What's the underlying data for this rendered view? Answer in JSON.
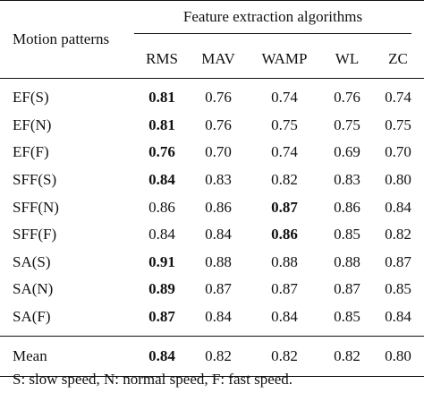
{
  "table": {
    "row_header": "Motion patterns",
    "group_header": "Feature extraction algorithms",
    "columns": [
      "RMS",
      "MAV",
      "WAMP",
      "WL",
      "ZC"
    ],
    "rows": [
      {
        "label": "EF(S)",
        "values": [
          "0.81",
          "0.76",
          "0.74",
          "0.76",
          "0.74"
        ],
        "bold": [
          0
        ]
      },
      {
        "label": "EF(N)",
        "values": [
          "0.81",
          "0.76",
          "0.75",
          "0.75",
          "0.75"
        ],
        "bold": [
          0
        ]
      },
      {
        "label": "EF(F)",
        "values": [
          "0.76",
          "0.70",
          "0.74",
          "0.69",
          "0.70"
        ],
        "bold": [
          0
        ]
      },
      {
        "label": "SFF(S)",
        "values": [
          "0.84",
          "0.83",
          "0.82",
          "0.83",
          "0.80"
        ],
        "bold": [
          0
        ]
      },
      {
        "label": "SFF(N)",
        "values": [
          "0.86",
          "0.86",
          "0.87",
          "0.86",
          "0.84"
        ],
        "bold": [
          2
        ]
      },
      {
        "label": "SFF(F)",
        "values": [
          "0.84",
          "0.84",
          "0.86",
          "0.85",
          "0.82"
        ],
        "bold": [
          2
        ]
      },
      {
        "label": "SA(S)",
        "values": [
          "0.91",
          "0.88",
          "0.88",
          "0.88",
          "0.87"
        ],
        "bold": [
          0
        ]
      },
      {
        "label": "SA(N)",
        "values": [
          "0.89",
          "0.87",
          "0.87",
          "0.87",
          "0.85"
        ],
        "bold": [
          0
        ]
      },
      {
        "label": "SA(F)",
        "values": [
          "0.87",
          "0.84",
          "0.84",
          "0.85",
          "0.84"
        ],
        "bold": [
          0
        ]
      }
    ],
    "mean": {
      "label": "Mean",
      "values": [
        "0.84",
        "0.82",
        "0.82",
        "0.82",
        "0.80"
      ],
      "bold": [
        0
      ]
    }
  },
  "footnote": "S: slow speed, N: normal speed, F: fast speed."
}
